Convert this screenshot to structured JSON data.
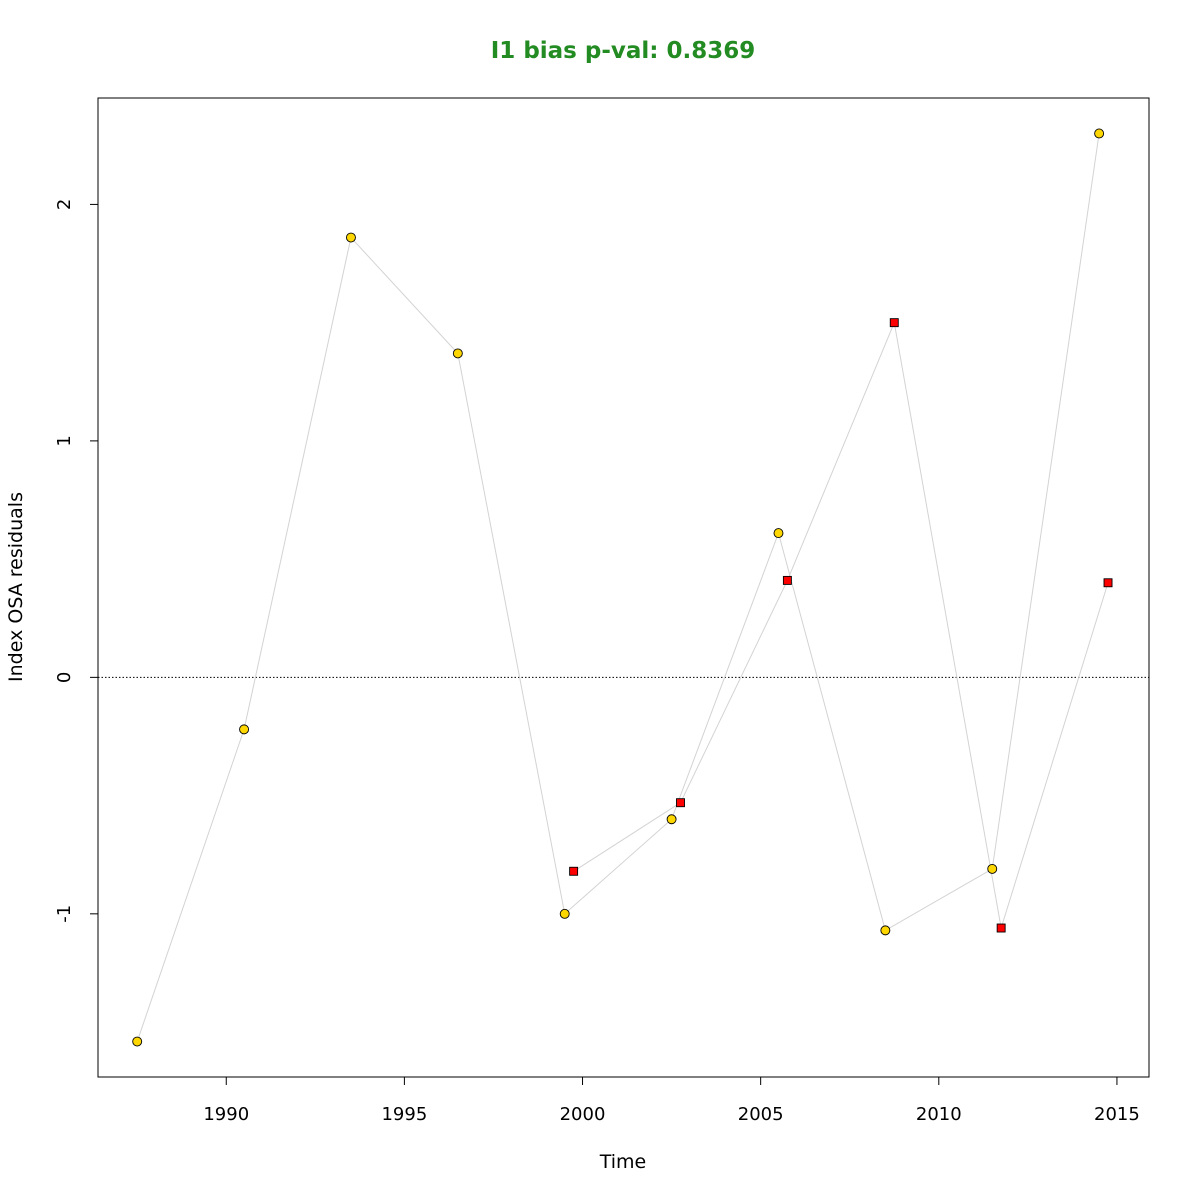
{
  "chart_data": {
    "type": "scatter",
    "title": "I1 bias p-val: 0.8369",
    "title_color": "#228B22",
    "xlabel": "Time",
    "ylabel": "Index OSA residuals",
    "xlim": [
      1986.4,
      2015.9
    ],
    "ylim": [
      -1.69,
      2.45
    ],
    "x_ticks": [
      1990,
      1995,
      2000,
      2005,
      2010,
      2015
    ],
    "y_ticks": [
      -1,
      0,
      1,
      2
    ],
    "reference_line": 0,
    "line_color": "#d3d3d3",
    "series": [
      {
        "marker": "circle",
        "fill": "#FFD700",
        "points": [
          {
            "x": 1987.5,
            "y": -1.54
          },
          {
            "x": 1990.5,
            "y": -0.22
          },
          {
            "x": 1993.5,
            "y": 1.86
          },
          {
            "x": 1996.5,
            "y": 1.37
          },
          {
            "x": 1999.5,
            "y": -1.0
          },
          {
            "x": 2002.5,
            "y": -0.6
          },
          {
            "x": 2005.5,
            "y": 0.61
          },
          {
            "x": 2008.5,
            "y": -1.07
          },
          {
            "x": 2011.5,
            "y": -0.81
          },
          {
            "x": 2014.5,
            "y": 2.3
          }
        ]
      },
      {
        "marker": "square",
        "fill": "#FF0000",
        "points": [
          {
            "x": 1999.75,
            "y": -0.82
          },
          {
            "x": 2002.75,
            "y": -0.53
          },
          {
            "x": 2005.75,
            "y": 0.41
          },
          {
            "x": 2008.75,
            "y": 1.5
          },
          {
            "x": 2011.75,
            "y": -1.06
          },
          {
            "x": 2014.75,
            "y": 0.4
          }
        ]
      }
    ]
  }
}
